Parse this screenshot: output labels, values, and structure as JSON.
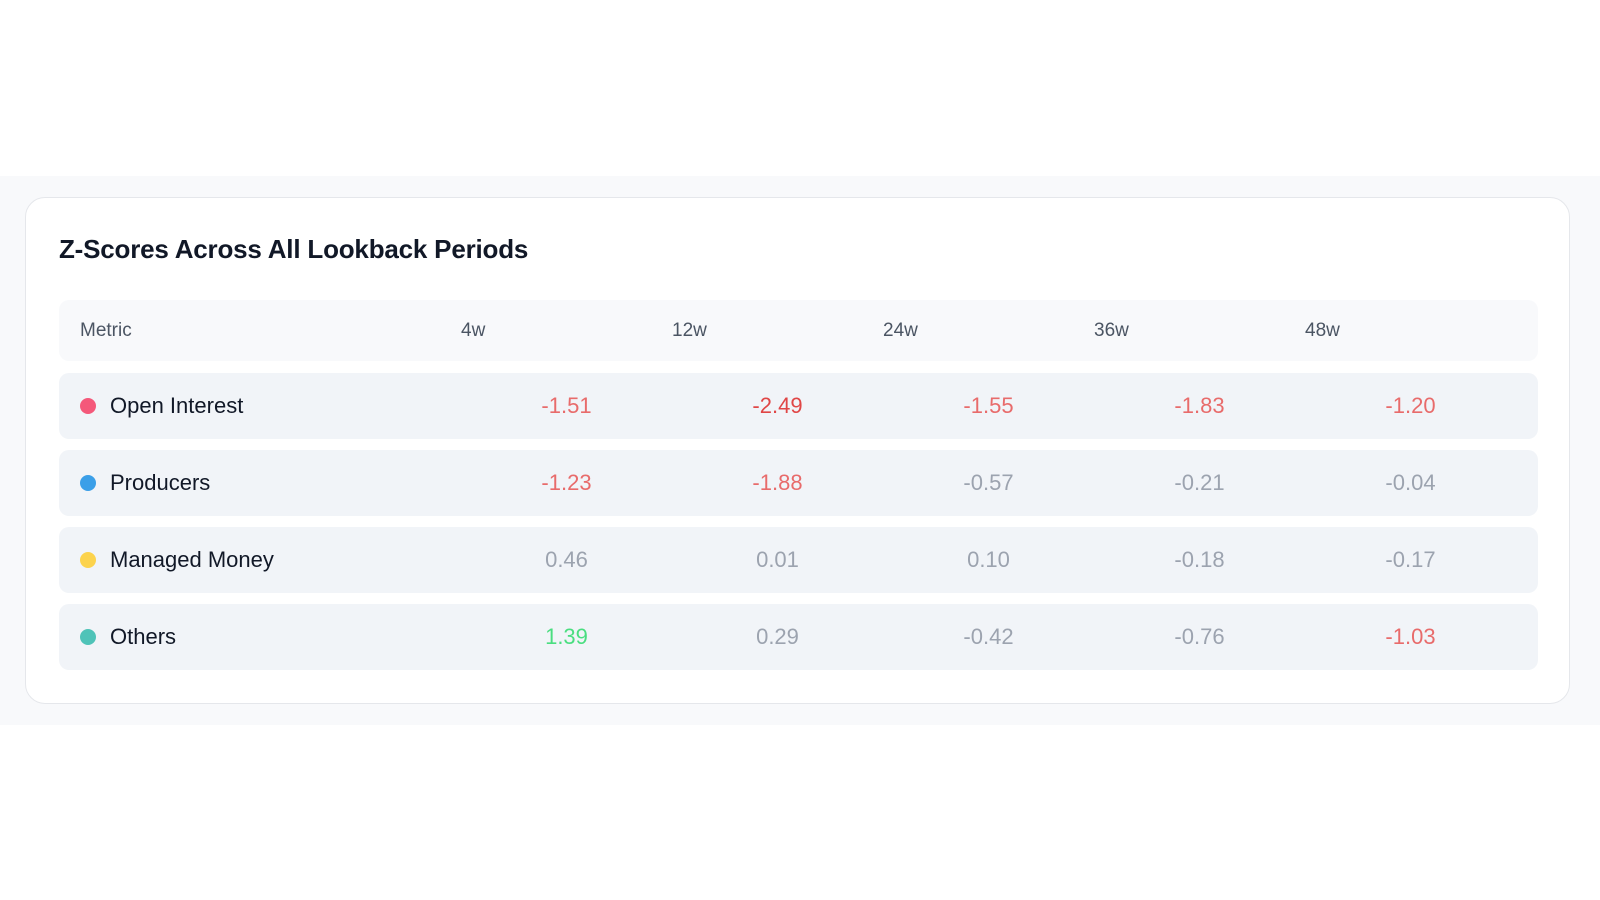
{
  "title": "Z-Scores Across All Lookback Periods",
  "columns": [
    "Metric",
    "4w",
    "12w",
    "24w",
    "36w",
    "48w"
  ],
  "rows": [
    {
      "label": "Open Interest",
      "color": "#f4587a",
      "values": [
        "-1.51",
        "-2.49",
        "-1.55",
        "-1.83",
        "-1.20"
      ],
      "tones": [
        "neg",
        "strong-neg",
        "neg",
        "neg",
        "neg"
      ]
    },
    {
      "label": "Producers",
      "color": "#3b9fe8",
      "values": [
        "-1.23",
        "-1.88",
        "-0.57",
        "-0.21",
        "-0.04"
      ],
      "tones": [
        "neg",
        "neg",
        "neutral",
        "neutral",
        "neutral"
      ]
    },
    {
      "label": "Managed Money",
      "color": "#fcd34d",
      "values": [
        "0.46",
        "0.01",
        "0.10",
        "-0.18",
        "-0.17"
      ],
      "tones": [
        "neutral",
        "neutral",
        "neutral",
        "neutral",
        "neutral"
      ]
    },
    {
      "label": "Others",
      "color": "#4fc3b8",
      "values": [
        "1.39",
        "0.29",
        "-0.42",
        "-0.76",
        "-1.03"
      ],
      "tones": [
        "pos",
        "neutral",
        "neutral",
        "neutral",
        "neg"
      ]
    }
  ]
}
